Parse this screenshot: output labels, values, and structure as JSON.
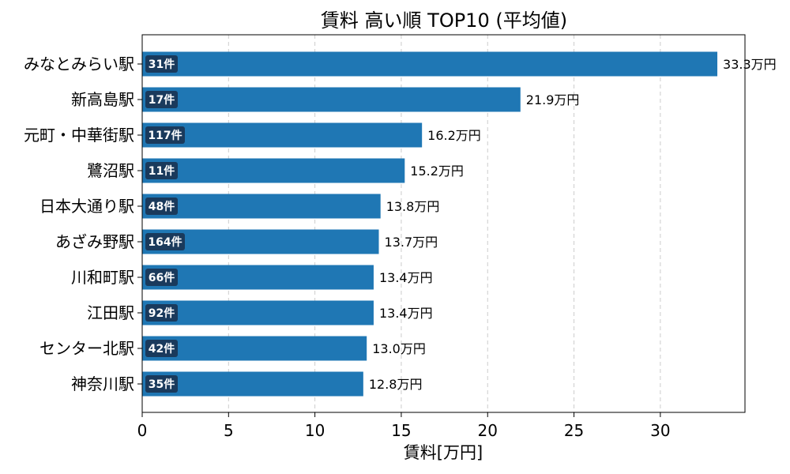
{
  "chart_data": {
    "type": "bar",
    "orientation": "horizontal",
    "title": "賃料 高い順 TOP10 (平均値)",
    "xlabel": "賃料[万円]",
    "ylabel": "",
    "xlim": [
      0,
      34.9
    ],
    "xticks": [
      0,
      5,
      10,
      15,
      20,
      25,
      30
    ],
    "grid": "x-dashed",
    "categories": [
      "みなとみらい駅",
      "新高島駅",
      "元町・中華街駅",
      "鷺沼駅",
      "日本大通り駅",
      "あざみ野駅",
      "川和町駅",
      "江田駅",
      "センター北駅",
      "神奈川駅"
    ],
    "values": [
      33.3,
      21.9,
      16.2,
      15.2,
      13.8,
      13.7,
      13.4,
      13.4,
      13.0,
      12.8
    ],
    "value_labels": [
      "33.3万円",
      "21.9万円",
      "16.2万円",
      "15.2万円",
      "13.8万円",
      "13.7万円",
      "13.4万円",
      "13.4万円",
      "13.0万円",
      "12.8万円"
    ],
    "counts": [
      "31件",
      "17件",
      "117件",
      "11件",
      "48件",
      "164件",
      "66件",
      "92件",
      "42件",
      "35件"
    ],
    "bar_color": "#1f77b4",
    "count_badge_color": "#1a3a5c"
  }
}
